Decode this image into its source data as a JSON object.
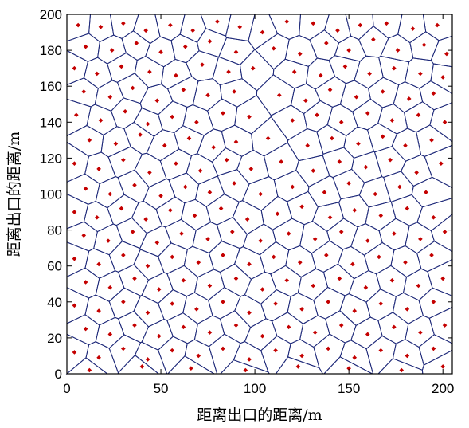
{
  "chart_data": {
    "type": "scatter",
    "subtype": "voronoi-diagram",
    "title": "",
    "xlabel": "距离出口的距离/m",
    "ylabel": "距离出口的距离/m",
    "xlim": [
      0,
      205
    ],
    "ylim": [
      0,
      200
    ],
    "xticks": [
      "0",
      "50",
      "100",
      "150",
      "200"
    ],
    "yticks": [
      "0",
      "20",
      "40",
      "60",
      "80",
      "100",
      "120",
      "140",
      "160",
      "180",
      "200"
    ],
    "grid": false,
    "legend": "none",
    "colors": {
      "points": "#c40000",
      "cell_edges": "#1f2a7a",
      "frame": "#000000"
    },
    "points": [
      [
        6,
        194
      ],
      [
        18,
        193
      ],
      [
        30,
        195
      ],
      [
        42,
        191
      ],
      [
        55,
        194
      ],
      [
        67,
        191
      ],
      [
        80,
        196
      ],
      [
        92,
        193
      ],
      [
        104,
        190
      ],
      [
        117,
        196
      ],
      [
        131,
        195
      ],
      [
        144,
        191
      ],
      [
        156,
        194
      ],
      [
        170,
        195
      ],
      [
        184,
        192
      ],
      [
        197,
        194
      ],
      [
        10,
        182
      ],
      [
        24,
        180
      ],
      [
        37,
        184
      ],
      [
        50,
        179
      ],
      [
        63,
        182
      ],
      [
        76,
        185
      ],
      [
        90,
        179
      ],
      [
        110,
        181
      ],
      [
        124,
        178
      ],
      [
        138,
        184
      ],
      [
        150,
        180
      ],
      [
        163,
        186
      ],
      [
        176,
        180
      ],
      [
        190,
        183
      ],
      [
        202,
        178
      ],
      [
        4,
        170
      ],
      [
        16,
        167
      ],
      [
        29,
        171
      ],
      [
        44,
        168
      ],
      [
        58,
        166
      ],
      [
        72,
        172
      ],
      [
        86,
        168
      ],
      [
        99,
        170
      ],
      [
        121,
        168
      ],
      [
        135,
        166
      ],
      [
        148,
        171
      ],
      [
        161,
        167
      ],
      [
        174,
        170
      ],
      [
        188,
        167
      ],
      [
        200,
        165
      ],
      [
        9,
        157
      ],
      [
        23,
        154
      ],
      [
        35,
        159
      ],
      [
        48,
        152
      ],
      [
        62,
        158
      ],
      [
        75,
        155
      ],
      [
        89,
        157
      ],
      [
        113,
        155
      ],
      [
        127,
        152
      ],
      [
        140,
        158
      ],
      [
        154,
        154
      ],
      [
        168,
        157
      ],
      [
        182,
        153
      ],
      [
        195,
        156
      ],
      [
        5,
        144
      ],
      [
        18,
        141
      ],
      [
        31,
        146
      ],
      [
        43,
        139
      ],
      [
        56,
        143
      ],
      [
        69,
        140
      ],
      [
        83,
        145
      ],
      [
        97,
        143
      ],
      [
        120,
        141
      ],
      [
        133,
        144
      ],
      [
        146,
        140
      ],
      [
        160,
        145
      ],
      [
        173,
        141
      ],
      [
        187,
        144
      ],
      [
        201,
        140
      ],
      [
        12,
        130
      ],
      [
        26,
        128
      ],
      [
        39,
        133
      ],
      [
        52,
        127
      ],
      [
        65,
        131
      ],
      [
        78,
        126
      ],
      [
        90,
        129
      ],
      [
        107,
        131
      ],
      [
        128,
        127
      ],
      [
        141,
        131
      ],
      [
        155,
        128
      ],
      [
        168,
        132
      ],
      [
        180,
        127
      ],
      [
        194,
        130
      ],
      [
        4,
        117
      ],
      [
        17,
        114
      ],
      [
        30,
        119
      ],
      [
        44,
        112
      ],
      [
        58,
        117
      ],
      [
        71,
        113
      ],
      [
        85,
        119
      ],
      [
        98,
        114
      ],
      [
        114,
        118
      ],
      [
        131,
        113
      ],
      [
        145,
        118
      ],
      [
        159,
        115
      ],
      [
        172,
        119
      ],
      [
        186,
        112
      ],
      [
        199,
        117
      ],
      [
        10,
        103
      ],
      [
        23,
        100
      ],
      [
        36,
        105
      ],
      [
        50,
        99
      ],
      [
        63,
        104
      ],
      [
        76,
        101
      ],
      [
        89,
        106
      ],
      [
        103,
        100
      ],
      [
        120,
        104
      ],
      [
        137,
        101
      ],
      [
        150,
        106
      ],
      [
        164,
        100
      ],
      [
        177,
        104
      ],
      [
        191,
        101
      ],
      [
        4,
        90
      ],
      [
        16,
        87
      ],
      [
        29,
        92
      ],
      [
        42,
        86
      ],
      [
        55,
        91
      ],
      [
        68,
        88
      ],
      [
        82,
        92
      ],
      [
        96,
        86
      ],
      [
        112,
        89
      ],
      [
        125,
        93
      ],
      [
        140,
        87
      ],
      [
        153,
        91
      ],
      [
        167,
        88
      ],
      [
        181,
        92
      ],
      [
        195,
        87
      ],
      [
        9,
        77
      ],
      [
        22,
        74
      ],
      [
        35,
        79
      ],
      [
        48,
        73
      ],
      [
        61,
        78
      ],
      [
        75,
        75
      ],
      [
        88,
        79
      ],
      [
        103,
        74
      ],
      [
        118,
        78
      ],
      [
        132,
        75
      ],
      [
        146,
        79
      ],
      [
        160,
        74
      ],
      [
        174,
        78
      ],
      [
        188,
        75
      ],
      [
        201,
        79
      ],
      [
        4,
        64
      ],
      [
        17,
        61
      ],
      [
        30,
        66
      ],
      [
        43,
        60
      ],
      [
        56,
        65
      ],
      [
        70,
        62
      ],
      [
        83,
        66
      ],
      [
        97,
        61
      ],
      [
        110,
        65
      ],
      [
        124,
        62
      ],
      [
        138,
        66
      ],
      [
        152,
        61
      ],
      [
        166,
        65
      ],
      [
        180,
        62
      ],
      [
        194,
        66
      ],
      [
        10,
        51
      ],
      [
        23,
        48
      ],
      [
        36,
        53
      ],
      [
        49,
        47
      ],
      [
        62,
        52
      ],
      [
        76,
        49
      ],
      [
        90,
        53
      ],
      [
        104,
        47
      ],
      [
        117,
        52
      ],
      [
        131,
        49
      ],
      [
        145,
        53
      ],
      [
        159,
        48
      ],
      [
        173,
        52
      ],
      [
        187,
        49
      ],
      [
        200,
        53
      ],
      [
        4,
        38
      ],
      [
        17,
        35
      ],
      [
        30,
        40
      ],
      [
        43,
        34
      ],
      [
        56,
        39
      ],
      [
        69,
        36
      ],
      [
        83,
        40
      ],
      [
        97,
        34
      ],
      [
        111,
        39
      ],
      [
        125,
        36
      ],
      [
        139,
        40
      ],
      [
        153,
        35
      ],
      [
        167,
        39
      ],
      [
        181,
        36
      ],
      [
        195,
        40
      ],
      [
        10,
        25
      ],
      [
        23,
        22
      ],
      [
        36,
        27
      ],
      [
        49,
        21
      ],
      [
        62,
        26
      ],
      [
        76,
        23
      ],
      [
        90,
        27
      ],
      [
        104,
        21
      ],
      [
        118,
        26
      ],
      [
        132,
        23
      ],
      [
        146,
        27
      ],
      [
        160,
        22
      ],
      [
        174,
        26
      ],
      [
        188,
        23
      ],
      [
        201,
        27
      ],
      [
        4,
        12
      ],
      [
        17,
        9
      ],
      [
        30,
        14
      ],
      [
        43,
        8
      ],
      [
        56,
        13
      ],
      [
        70,
        10
      ],
      [
        83,
        14
      ],
      [
        97,
        8
      ],
      [
        111,
        13
      ],
      [
        125,
        10
      ],
      [
        139,
        14
      ],
      [
        153,
        9
      ],
      [
        167,
        13
      ],
      [
        181,
        10
      ],
      [
        195,
        14
      ],
      [
        12,
        2
      ],
      [
        40,
        4
      ],
      [
        66,
        3
      ],
      [
        95,
        2
      ],
      [
        123,
        4
      ],
      [
        150,
        3
      ],
      [
        178,
        2
      ],
      [
        200,
        4
      ]
    ]
  }
}
